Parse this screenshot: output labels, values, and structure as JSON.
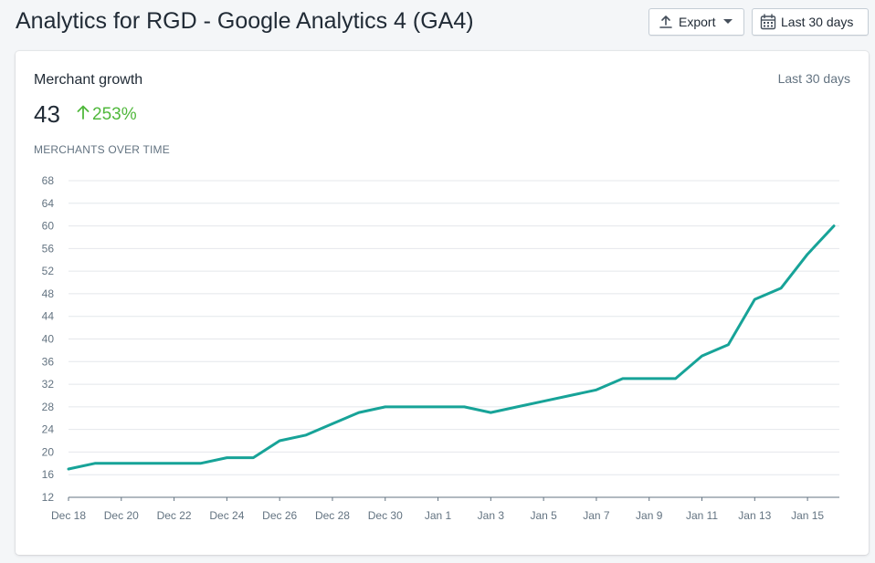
{
  "page_title": "Analytics for RGD - Google Analytics 4 (GA4)",
  "toolbar": {
    "export_label": "Export",
    "date_range_label": "Last 30 days"
  },
  "card": {
    "title": "Merchant growth",
    "period": "Last 30 days",
    "metric_value": "43",
    "metric_change": "253%",
    "section_label": "MERCHANTS OVER TIME"
  },
  "colors": {
    "line": "#17a398",
    "positive": "#50b83c",
    "grid": "#e4e7eb"
  },
  "icons": {
    "export": "upload-icon",
    "date_range": "calendar-icon",
    "caret": "caret-down-icon",
    "change": "arrow-up-icon"
  },
  "chart_data": {
    "type": "line",
    "title": "",
    "xlabel": "",
    "ylabel": "",
    "ylim": [
      12,
      68
    ],
    "yticks": [
      12,
      16,
      20,
      24,
      28,
      32,
      36,
      40,
      44,
      48,
      52,
      56,
      60,
      64,
      68
    ],
    "xticks": [
      "Dec 18",
      "Dec 20",
      "Dec 22",
      "Dec 24",
      "Dec 26",
      "Dec 28",
      "Dec 30",
      "Jan 1",
      "Jan 3",
      "Jan 5",
      "Jan 7",
      "Jan 9",
      "Jan 11",
      "Jan 13",
      "Jan 15"
    ],
    "grid": true,
    "legend": "none",
    "x": [
      "Dec 18",
      "Dec 19",
      "Dec 20",
      "Dec 21",
      "Dec 22",
      "Dec 23",
      "Dec 24",
      "Dec 25",
      "Dec 26",
      "Dec 27",
      "Dec 28",
      "Dec 29",
      "Dec 30",
      "Dec 31",
      "Jan 1",
      "Jan 2",
      "Jan 3",
      "Jan 4",
      "Jan 5",
      "Jan 6",
      "Jan 7",
      "Jan 8",
      "Jan 9",
      "Jan 10",
      "Jan 11",
      "Jan 12",
      "Jan 13",
      "Jan 14",
      "Jan 15",
      "Jan 16"
    ],
    "series": [
      {
        "values": [
          17,
          18,
          18,
          18,
          18,
          18,
          19,
          19,
          22,
          23,
          25,
          27,
          28,
          28,
          28,
          28,
          27,
          28,
          29,
          30,
          31,
          33,
          33,
          33,
          37,
          39,
          47,
          49,
          55,
          60
        ]
      }
    ]
  }
}
